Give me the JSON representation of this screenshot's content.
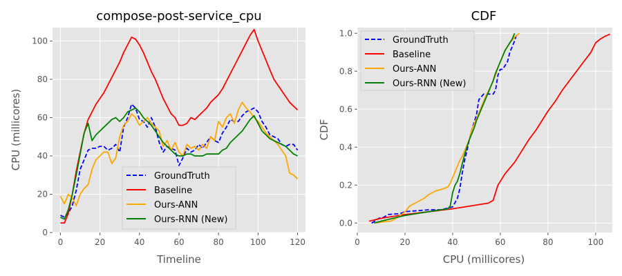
{
  "chart_data": [
    {
      "type": "line",
      "title": "compose-post-service_cpu",
      "xlabel": "Timeline",
      "ylabel": "CPU (millicores)",
      "xlim": [
        -4,
        124
      ],
      "ylim": [
        0,
        107
      ],
      "xticks": [
        0,
        20,
        40,
        60,
        80,
        100,
        120
      ],
      "yticks": [
        0,
        20,
        40,
        60,
        80,
        100
      ],
      "grid": true,
      "legend_position": "lower-center",
      "series": [
        {
          "name": "GroundTruth",
          "color": "#0000ff",
          "dash": "dashed",
          "x": [
            0,
            2,
            4,
            6,
            8,
            10,
            12,
            14,
            16,
            18,
            20,
            22,
            24,
            26,
            28,
            30,
            32,
            34,
            36,
            38,
            40,
            42,
            44,
            46,
            48,
            50,
            52,
            54,
            56,
            58,
            60,
            62,
            64,
            66,
            68,
            70,
            72,
            74,
            76,
            78,
            80,
            82,
            84,
            86,
            88,
            90,
            92,
            94,
            96,
            98,
            100,
            102,
            104,
            106,
            108,
            110,
            112,
            114,
            116,
            118,
            120
          ],
          "y": [
            9,
            8,
            10,
            14,
            22,
            33,
            38,
            43,
            44,
            44,
            45,
            45,
            43,
            44,
            46,
            42,
            55,
            60,
            67,
            65,
            59,
            58,
            55,
            60,
            55,
            47,
            42,
            45,
            44,
            43,
            35,
            39,
            44,
            42,
            43,
            46,
            44,
            47,
            50,
            48,
            47,
            52,
            55,
            59,
            58,
            58,
            61,
            63,
            64,
            65,
            63,
            58,
            55,
            51,
            50,
            49,
            46,
            45,
            46,
            46,
            43
          ]
        },
        {
          "name": "Baseline",
          "color": "#ff0000",
          "dash": "solid",
          "x": [
            0,
            2,
            4,
            6,
            8,
            10,
            12,
            14,
            16,
            18,
            20,
            22,
            24,
            26,
            28,
            30,
            32,
            34,
            36,
            38,
            40,
            42,
            44,
            46,
            48,
            50,
            52,
            54,
            56,
            58,
            60,
            62,
            64,
            66,
            68,
            70,
            72,
            74,
            76,
            78,
            80,
            82,
            84,
            86,
            88,
            90,
            92,
            94,
            96,
            98,
            100,
            102,
            104,
            106,
            108,
            110,
            112,
            114,
            116,
            118,
            120
          ],
          "y": [
            5,
            5,
            10,
            20,
            32,
            42,
            52,
            59,
            63,
            67,
            70,
            73,
            77,
            81,
            85,
            89,
            94,
            98,
            102,
            101,
            98,
            94,
            89,
            84,
            80,
            75,
            70,
            66,
            62,
            60,
            56,
            56,
            57,
            60,
            59,
            61,
            63,
            65,
            68,
            70,
            72,
            75,
            79,
            83,
            87,
            91,
            95,
            99,
            103,
            106,
            100,
            95,
            90,
            85,
            80,
            77,
            74,
            71,
            68,
            66,
            64
          ]
        },
        {
          "name": "Ours-ANN",
          "color": "#ffa500",
          "dash": "solid",
          "x": [
            0,
            2,
            4,
            6,
            8,
            10,
            12,
            14,
            16,
            18,
            20,
            22,
            24,
            26,
            28,
            30,
            32,
            34,
            36,
            38,
            40,
            42,
            44,
            46,
            48,
            50,
            52,
            54,
            56,
            58,
            60,
            62,
            64,
            66,
            68,
            70,
            72,
            74,
            76,
            78,
            80,
            82,
            84,
            86,
            88,
            90,
            92,
            94,
            96,
            98,
            100,
            102,
            104,
            106,
            108,
            110,
            112,
            114,
            116,
            118,
            120
          ],
          "y": [
            19,
            15,
            20,
            18,
            14,
            20,
            23,
            25,
            33,
            38,
            40,
            42,
            42,
            36,
            39,
            50,
            56,
            58,
            62,
            60,
            56,
            58,
            60,
            57,
            55,
            53,
            45,
            48,
            43,
            47,
            42,
            40,
            46,
            44,
            45,
            43,
            46,
            44,
            50,
            48,
            58,
            55,
            60,
            62,
            57,
            64,
            68,
            65,
            63,
            60,
            58,
            55,
            52,
            50,
            48,
            46,
            43,
            40,
            31,
            30,
            28
          ]
        },
        {
          "name": "Ours-RNN (New)",
          "color": "#008000",
          "dash": "solid",
          "x": [
            0,
            2,
            4,
            6,
            8,
            10,
            12,
            14,
            16,
            18,
            20,
            22,
            24,
            26,
            28,
            30,
            32,
            34,
            36,
            38,
            40,
            42,
            44,
            46,
            48,
            50,
            52,
            54,
            56,
            58,
            60,
            62,
            64,
            66,
            68,
            70,
            72,
            74,
            76,
            78,
            80,
            82,
            84,
            86,
            88,
            90,
            92,
            94,
            96,
            98,
            100,
            102,
            104,
            106,
            108,
            110,
            112,
            114,
            116,
            118,
            120
          ],
          "y": [
            8,
            7,
            12,
            20,
            30,
            41,
            52,
            57,
            48,
            51,
            53,
            55,
            57,
            59,
            60,
            58,
            60,
            63,
            64,
            65,
            63,
            60,
            58,
            56,
            53,
            50,
            47,
            45,
            43,
            41,
            40,
            40,
            41,
            41,
            40,
            40,
            40,
            41,
            41,
            41,
            41,
            43,
            44,
            47,
            49,
            51,
            53,
            56,
            59,
            61,
            57,
            53,
            51,
            49,
            48,
            47,
            46,
            45,
            43,
            41,
            40
          ]
        }
      ]
    },
    {
      "type": "line",
      "title": "CDF",
      "xlabel": "CPU (millicores)",
      "ylabel": "CDF",
      "xlim": [
        0,
        107
      ],
      "ylim": [
        -0.05,
        1.03
      ],
      "xticks": [
        0,
        20,
        40,
        60,
        80,
        100
      ],
      "yticks": [
        0.0,
        0.2,
        0.4,
        0.6,
        0.8,
        1.0
      ],
      "ytick_labels": [
        "0.0",
        "0.2",
        "0.4",
        "0.6",
        "0.8",
        "1.0"
      ],
      "grid": true,
      "legend_position": "upper-left",
      "series": [
        {
          "name": "GroundTruth",
          "color": "#0000ff",
          "dash": "dashed",
          "x": [
            6,
            8,
            9,
            11,
            13,
            18,
            20,
            25,
            30,
            35,
            40,
            42,
            43,
            44,
            45,
            46,
            47,
            48,
            49,
            50,
            51,
            53,
            55,
            57,
            58,
            59,
            60,
            61,
            62,
            63,
            64,
            65,
            66,
            67
          ],
          "y": [
            0.0,
            0.015,
            0.025,
            0.03,
            0.045,
            0.05,
            0.06,
            0.065,
            0.07,
            0.07,
            0.085,
            0.13,
            0.18,
            0.26,
            0.33,
            0.38,
            0.44,
            0.49,
            0.53,
            0.57,
            0.65,
            0.68,
            0.68,
            0.68,
            0.7,
            0.78,
            0.81,
            0.81,
            0.83,
            0.85,
            0.9,
            0.93,
            0.96,
            1.0
          ]
        },
        {
          "name": "Baseline",
          "color": "#ff0000",
          "dash": "solid",
          "x": [
            5,
            10,
            20,
            30,
            40,
            45,
            50,
            55,
            57,
            58,
            59,
            60,
            62,
            64,
            66,
            68,
            70,
            72,
            75,
            78,
            80,
            83,
            86,
            89,
            92,
            95,
            98,
            100,
            102,
            104,
            106
          ],
          "y": [
            0.01,
            0.025,
            0.045,
            0.06,
            0.075,
            0.085,
            0.095,
            0.105,
            0.12,
            0.16,
            0.2,
            0.22,
            0.26,
            0.29,
            0.32,
            0.36,
            0.4,
            0.44,
            0.49,
            0.55,
            0.59,
            0.64,
            0.7,
            0.75,
            0.8,
            0.85,
            0.9,
            0.95,
            0.97,
            0.985,
            0.995
          ]
        },
        {
          "name": "Ours-ANN",
          "color": "#ffa500",
          "dash": "solid",
          "x": [
            8,
            10,
            14,
            17,
            20,
            22,
            25,
            28,
            30,
            33,
            36,
            38,
            39,
            40,
            41,
            42,
            43,
            44,
            45,
            46,
            47,
            48,
            50,
            52,
            54,
            56,
            57,
            58,
            59,
            60,
            61,
            62,
            63,
            64,
            66,
            68
          ],
          "y": [
            0.0,
            0.005,
            0.01,
            0.03,
            0.06,
            0.09,
            0.11,
            0.13,
            0.15,
            0.17,
            0.18,
            0.19,
            0.21,
            0.24,
            0.27,
            0.3,
            0.33,
            0.35,
            0.38,
            0.41,
            0.44,
            0.49,
            0.55,
            0.61,
            0.67,
            0.72,
            0.75,
            0.78,
            0.82,
            0.85,
            0.88,
            0.91,
            0.93,
            0.95,
            0.98,
            1.0
          ]
        },
        {
          "name": "Ours-RNN (New)",
          "color": "#008000",
          "dash": "solid",
          "x": [
            7,
            10,
            15,
            20,
            25,
            30,
            35,
            38,
            39,
            40,
            41,
            42,
            43,
            44,
            45,
            46,
            47,
            48,
            49,
            50,
            51,
            52,
            53,
            54,
            55,
            56,
            57,
            58,
            59,
            60,
            61,
            62,
            63,
            64,
            65,
            66
          ],
          "y": [
            0.0,
            0.01,
            0.025,
            0.04,
            0.05,
            0.06,
            0.07,
            0.075,
            0.09,
            0.16,
            0.2,
            0.22,
            0.26,
            0.31,
            0.36,
            0.4,
            0.44,
            0.47,
            0.5,
            0.54,
            0.57,
            0.6,
            0.63,
            0.66,
            0.69,
            0.72,
            0.75,
            0.79,
            0.82,
            0.85,
            0.88,
            0.91,
            0.93,
            0.95,
            0.97,
            1.0
          ]
        }
      ]
    }
  ]
}
